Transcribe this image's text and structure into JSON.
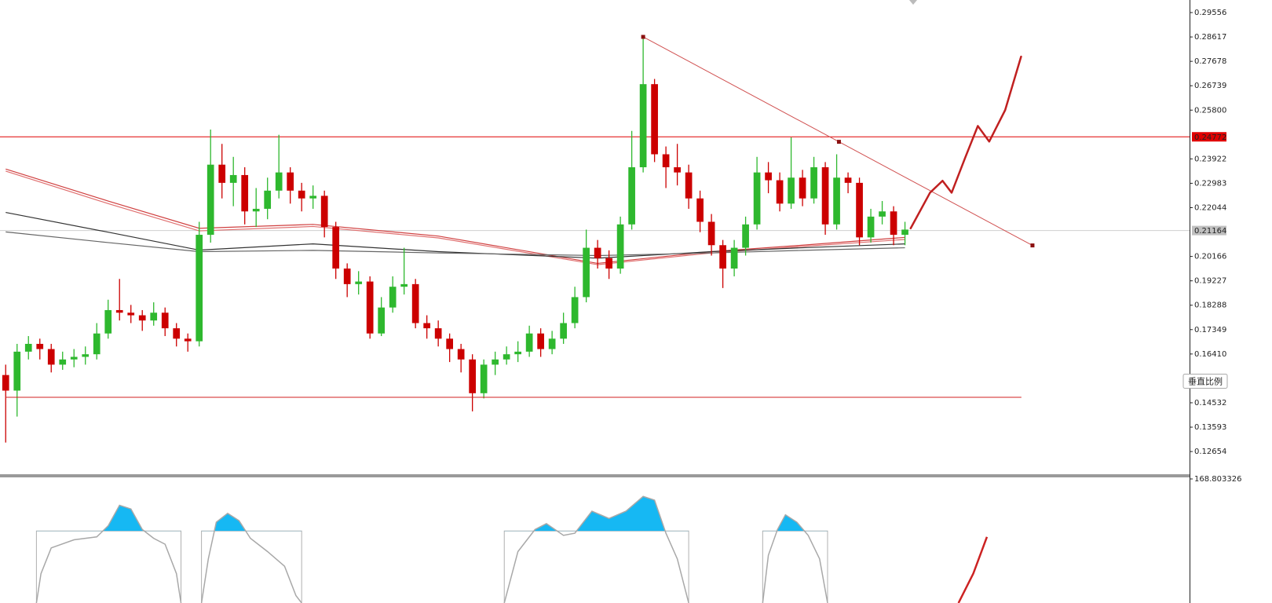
{
  "chart_data": [
    {
      "type": "candlestick",
      "xlim": [
        -0.5,
        104
      ],
      "ylim": [
        0.1175,
        0.3004
      ],
      "yticks": [
        0.29556,
        0.28617,
        0.27678,
        0.26739,
        {
          "value": 0.258,
          "label": "0.25800"
        },
        0.23922,
        0.22983,
        0.22044,
        0.20166,
        0.19227,
        0.18288,
        0.17349,
        {
          "value": 0.1641,
          "label": "0.16410"
        },
        0.14532,
        0.13593,
        0.12654
      ],
      "up_color": "#2eb82e",
      "down_color": "#cc0000",
      "open": [
        0.156,
        0.15,
        0.165,
        0.168,
        0.166,
        0.16,
        0.162,
        0.163,
        0.164,
        0.172,
        0.181,
        0.18,
        0.179,
        0.177,
        0.18,
        0.174,
        0.17,
        0.169,
        0.21,
        0.237,
        0.23,
        0.233,
        0.219,
        0.22,
        0.227,
        0.234,
        0.227,
        0.224,
        0.225,
        0.213,
        0.197,
        0.191,
        0.192,
        0.172,
        0.182,
        0.19,
        0.191,
        0.176,
        0.174,
        0.17,
        0.166,
        0.162,
        0.149,
        0.16,
        0.162,
        0.164,
        0.165,
        0.172,
        0.166,
        0.17,
        0.176,
        0.186,
        0.205,
        0.201,
        0.197,
        0.214,
        0.236,
        0.268,
        0.241,
        0.236,
        0.234,
        0.224,
        0.215,
        0.206,
        0.197,
        0.205,
        0.214,
        0.234,
        0.231,
        0.222,
        0.232,
        0.224,
        0.236,
        0.214,
        0.232,
        0.23,
        0.209,
        0.217,
        0.219,
        0.21
      ],
      "high": [
        0.16,
        0.168,
        0.171,
        0.17,
        0.168,
        0.165,
        0.166,
        0.167,
        0.176,
        0.185,
        0.193,
        0.183,
        0.181,
        0.184,
        0.182,
        0.176,
        0.172,
        0.215,
        0.2505,
        0.245,
        0.24,
        0.236,
        0.228,
        0.232,
        0.2485,
        0.236,
        0.23,
        0.229,
        0.227,
        0.215,
        0.199,
        0.196,
        0.194,
        0.186,
        0.194,
        0.205,
        0.193,
        0.179,
        0.177,
        0.172,
        0.168,
        0.164,
        0.162,
        0.165,
        0.167,
        0.169,
        0.175,
        0.174,
        0.173,
        0.18,
        0.19,
        0.212,
        0.208,
        0.204,
        0.217,
        0.25,
        0.2862,
        0.27,
        0.244,
        0.245,
        0.237,
        0.227,
        0.218,
        0.208,
        0.208,
        0.217,
        0.24,
        0.238,
        0.234,
        0.2475,
        0.235,
        0.24,
        0.238,
        0.241,
        0.234,
        0.232,
        0.22,
        0.223,
        0.221,
        0.215
      ],
      "low": [
        0.13,
        0.14,
        0.162,
        0.162,
        0.157,
        0.158,
        0.159,
        0.16,
        0.162,
        0.17,
        0.177,
        0.176,
        0.173,
        0.175,
        0.171,
        0.167,
        0.165,
        0.167,
        0.207,
        0.224,
        0.221,
        0.214,
        0.213,
        0.216,
        0.224,
        0.222,
        0.219,
        0.22,
        0.209,
        0.193,
        0.186,
        0.187,
        0.17,
        0.171,
        0.18,
        0.187,
        0.174,
        0.17,
        0.167,
        0.161,
        0.157,
        0.142,
        0.147,
        0.156,
        0.16,
        0.161,
        0.163,
        0.163,
        0.164,
        0.168,
        0.174,
        0.184,
        0.197,
        0.193,
        0.195,
        0.212,
        0.234,
        0.238,
        0.228,
        0.229,
        0.22,
        0.211,
        0.202,
        0.1895,
        0.194,
        0.202,
        0.212,
        0.226,
        0.219,
        0.22,
        0.221,
        0.222,
        0.21,
        0.212,
        0.226,
        0.206,
        0.207,
        0.214,
        0.206,
        0.206
      ],
      "close": [
        0.15,
        0.165,
        0.168,
        0.166,
        0.16,
        0.162,
        0.163,
        0.164,
        0.172,
        0.181,
        0.18,
        0.179,
        0.177,
        0.18,
        0.174,
        0.17,
        0.169,
        0.21,
        0.237,
        0.23,
        0.233,
        0.219,
        0.22,
        0.227,
        0.234,
        0.227,
        0.224,
        0.225,
        0.213,
        0.197,
        0.191,
        0.192,
        0.172,
        0.182,
        0.19,
        0.191,
        0.176,
        0.174,
        0.17,
        0.166,
        0.162,
        0.149,
        0.16,
        0.162,
        0.164,
        0.165,
        0.172,
        0.166,
        0.17,
        0.176,
        0.186,
        0.205,
        0.201,
        0.197,
        0.214,
        0.236,
        0.268,
        0.241,
        0.236,
        0.234,
        0.224,
        0.215,
        0.206,
        0.197,
        0.205,
        0.214,
        0.234,
        0.231,
        0.222,
        0.232,
        0.224,
        0.236,
        0.214,
        0.232,
        0.23,
        0.209,
        0.217,
        0.219,
        0.21,
        0.212
      ],
      "ma": [
        {
          "color": "#d04040",
          "x": [
            0,
            9,
            17,
            27,
            38,
            52,
            62,
            70,
            79
          ],
          "values": [
            0.2353,
            0.223,
            0.2125,
            0.214,
            0.2095,
            0.199,
            0.2035,
            0.206,
            0.209
          ]
        },
        {
          "color": "#e07070",
          "x": [
            0,
            9,
            17,
            27,
            38,
            52,
            62,
            70,
            79
          ],
          "values": [
            0.2345,
            0.222,
            0.2115,
            0.2132,
            0.2088,
            0.1985,
            0.203,
            0.2055,
            0.2082
          ]
        },
        {
          "color": "#333333",
          "x": [
            0,
            9,
            17,
            27,
            38,
            52,
            62,
            70,
            79
          ],
          "values": [
            0.2186,
            0.211,
            0.2041,
            0.2065,
            0.2035,
            0.201,
            0.2035,
            0.205,
            0.2065
          ]
        },
        {
          "color": "#666666",
          "x": [
            0,
            9,
            17,
            27,
            38,
            52,
            62,
            70,
            79
          ],
          "values": [
            0.2111,
            0.207,
            0.2035,
            0.204,
            0.203,
            0.202,
            0.203,
            0.204,
            0.205
          ]
        }
      ],
      "hlines": [
        {
          "value": 0.24772,
          "color": "#e00000",
          "tag_color": "#e00000"
        },
        {
          "value": 0.21164,
          "color": "#cfcfcf",
          "tag_color": "#c0c0c0"
        }
      ],
      "lines": [
        {
          "color": "#d02020",
          "x": [
            0,
            89.2
          ],
          "values": [
            0.14743,
            0.14743
          ]
        },
        {
          "color": "#d05050",
          "x": [
            56,
            73.2,
            90.2
          ],
          "values": [
            0.2862,
            0.2458,
            0.2059
          ],
          "markers": true
        },
        {
          "color": "#c02020",
          "x": [
            79.5,
            81.2,
            82.3,
            83.1,
            84.3,
            85.4,
            86.4,
            87.8,
            89.2
          ],
          "values": [
            0.2125,
            0.2262,
            0.2308,
            0.2262,
            0.2398,
            0.2519,
            0.2459,
            0.258,
            0.2786
          ],
          "width": 2.5
        }
      ],
      "scale_button": "垂直比例"
    },
    {
      "type": "oscillator",
      "xlim": [
        -0.5,
        104
      ],
      "ylim": [
        0,
        168.803326
      ],
      "yticks": [
        168.803326
      ],
      "level": 98,
      "series": [
        {
          "color": "#a8a8a8",
          "fill": "#16b8f3",
          "x": [
            2.7,
            3.1,
            4,
            6,
            8,
            9,
            10,
            11,
            12,
            13,
            14,
            15,
            15.4,
            null,
            17.2,
            17.8,
            18.5,
            19.5,
            20.5,
            21.5,
            23,
            24.5,
            25.5,
            26,
            null,
            43.8,
            45,
            46.5,
            47.5,
            49,
            50,
            51.5,
            53,
            54.5,
            56,
            57,
            58,
            59,
            60,
            null,
            66.5,
            67,
            67.8,
            68.5,
            69.5,
            70.5,
            71.5,
            72.2
          ],
          "values": [
            0,
            40,
            75,
            86,
            90,
            105,
            133,
            128,
            100,
            88,
            80,
            40,
            0,
            null,
            0,
            60,
            110,
            122,
            112,
            88,
            70,
            50,
            10,
            0,
            null,
            0,
            70,
            100,
            108,
            92,
            95,
            125,
            115,
            125,
            145,
            140,
            95,
            60,
            0,
            null,
            0,
            65,
            100,
            120,
            110,
            92,
            60,
            0
          ]
        },
        {
          "color": "#cc2222",
          "x": [
            83.7,
            85,
            86.2
          ],
          "values": [
            0,
            40,
            90
          ]
        }
      ]
    }
  ]
}
